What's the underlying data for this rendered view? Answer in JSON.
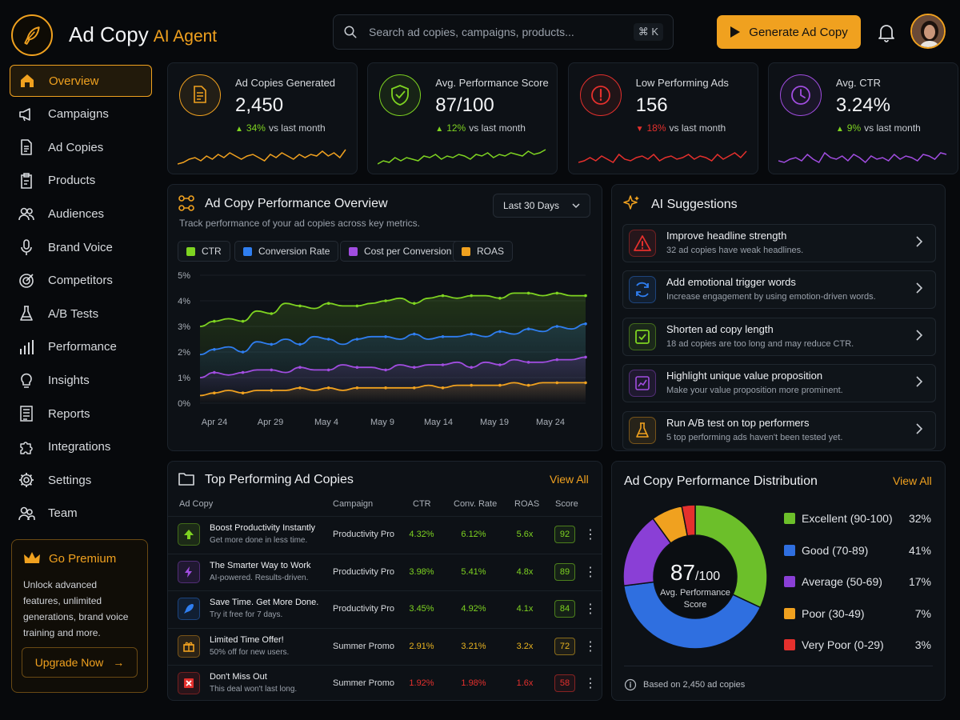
{
  "header": {
    "brand_main": "Ad Copy",
    "brand_accent": "AI Agent",
    "search_placeholder": "Search ad copies, campaigns, products...",
    "search_shortcut": "⌘ K",
    "generate_label": "Generate Ad Copy",
    "accent_color": "#f0a11f"
  },
  "sidebar": {
    "items": [
      {
        "label": "Overview",
        "icon": "home-icon",
        "active": true
      },
      {
        "label": "Campaigns",
        "icon": "megaphone-icon"
      },
      {
        "label": "Ad Copies",
        "icon": "document-icon"
      },
      {
        "label": "Products",
        "icon": "clipboard-icon"
      },
      {
        "label": "Audiences",
        "icon": "users-icon"
      },
      {
        "label": "Brand Voice",
        "icon": "microphone-icon"
      },
      {
        "label": "Competitors",
        "icon": "target-icon"
      },
      {
        "label": "A/B Tests",
        "icon": "flask-icon"
      },
      {
        "label": "Performance",
        "icon": "bar-chart-icon"
      },
      {
        "label": "Insights",
        "icon": "lightbulb-icon"
      },
      {
        "label": "Reports",
        "icon": "report-icon"
      },
      {
        "label": "Integrations",
        "icon": "puzzle-icon"
      },
      {
        "label": "Settings",
        "icon": "gear-icon"
      },
      {
        "label": "Team",
        "icon": "team-icon"
      }
    ],
    "premium": {
      "title": "Go Premium",
      "description": "Unlock advanced features, unlimited generations, brand voice training and more.",
      "button": "Upgrade Now"
    }
  },
  "stats": [
    {
      "label": "Ad Copies Generated",
      "value": "2,450",
      "delta": "34%",
      "delta_suffix": "vs last month",
      "trend": "up",
      "color": "#f0a11f",
      "icon": "document-icon"
    },
    {
      "label": "Avg. Performance Score",
      "value": "87/100",
      "delta": "12%",
      "delta_suffix": "vs last month",
      "trend": "up",
      "color": "#7ed321",
      "icon": "shield-check-icon"
    },
    {
      "label": "Low Performing Ads",
      "value": "156",
      "delta": "18%",
      "delta_suffix": "vs last month",
      "trend": "down",
      "color": "#e5302d",
      "icon": "alert-circle-icon"
    },
    {
      "label": "Avg. CTR",
      "value": "3.24%",
      "delta": "9%",
      "delta_suffix": "vs last month",
      "trend": "up",
      "color": "#a14de0",
      "icon": "clock-icon"
    }
  ],
  "performance": {
    "title": "Ad Copy Performance Overview",
    "subtitle": "Track performance of your ad copies across key metrics.",
    "range": "Last 30 Days",
    "legend": [
      {
        "name": "CTR",
        "color": "#7ed321"
      },
      {
        "name": "Conversion Rate",
        "color": "#2f7ef0"
      },
      {
        "name": "Cost per Conversion",
        "color": "#a14de0"
      },
      {
        "name": "ROAS",
        "color": "#f0a11f"
      }
    ]
  },
  "chart_data": {
    "type": "line",
    "ylim": [
      0,
      5
    ],
    "y_ticks": [
      "0%",
      "1%",
      "2%",
      "3%",
      "4%",
      "5%"
    ],
    "x_ticks": [
      "Apr 24",
      "Apr 29",
      "May 4",
      "May 9",
      "May 14",
      "May 19",
      "May 24"
    ],
    "series": [
      {
        "name": "CTR",
        "color": "#7ed321",
        "values": [
          3.0,
          3.2,
          3.3,
          3.2,
          3.6,
          3.5,
          3.9,
          3.8,
          3.7,
          3.9,
          3.8,
          3.8,
          3.9,
          4.0,
          4.1,
          3.9,
          4.1,
          4.2,
          4.1,
          4.2,
          4.2,
          4.1,
          4.3,
          4.3,
          4.2,
          4.3,
          4.2,
          4.2
        ]
      },
      {
        "name": "Conversion Rate",
        "color": "#2f7ef0",
        "values": [
          1.9,
          2.1,
          2.2,
          2.0,
          2.4,
          2.3,
          2.5,
          2.3,
          2.6,
          2.5,
          2.3,
          2.5,
          2.6,
          2.6,
          2.5,
          2.7,
          2.5,
          2.6,
          2.6,
          2.7,
          2.6,
          2.8,
          2.7,
          2.9,
          2.8,
          3.0,
          2.9,
          3.1
        ]
      },
      {
        "name": "Cost per Conversion",
        "color": "#a14de0",
        "values": [
          1.0,
          1.2,
          1.1,
          1.2,
          1.3,
          1.3,
          1.2,
          1.4,
          1.3,
          1.3,
          1.5,
          1.4,
          1.4,
          1.3,
          1.5,
          1.4,
          1.5,
          1.5,
          1.6,
          1.4,
          1.6,
          1.5,
          1.7,
          1.6,
          1.6,
          1.7,
          1.7,
          1.8
        ]
      },
      {
        "name": "ROAS",
        "color": "#f0a11f",
        "values": [
          0.3,
          0.4,
          0.5,
          0.4,
          0.5,
          0.5,
          0.5,
          0.6,
          0.5,
          0.6,
          0.5,
          0.6,
          0.6,
          0.6,
          0.6,
          0.6,
          0.7,
          0.6,
          0.7,
          0.7,
          0.7,
          0.7,
          0.8,
          0.7,
          0.8,
          0.8,
          0.8,
          0.8
        ]
      }
    ]
  },
  "suggestions": {
    "title": "AI Suggestions",
    "items": [
      {
        "title": "Improve headline strength",
        "subtitle": "32 ad copies have weak headlines.",
        "color": "#e5302d",
        "icon": "warning-icon"
      },
      {
        "title": "Add emotional trigger words",
        "subtitle": "Increase engagement by using emotion-driven words.",
        "color": "#2f7ef0",
        "icon": "refresh-icon"
      },
      {
        "title": "Shorten ad copy length",
        "subtitle": "18 ad copies are too long and may reduce CTR.",
        "color": "#7ed321",
        "icon": "checkbox-icon"
      },
      {
        "title": "Highlight unique value proposition",
        "subtitle": "Make your value proposition more prominent.",
        "color": "#a14de0",
        "icon": "chart-line-icon"
      },
      {
        "title": "Run A/B test on top performers",
        "subtitle": "5 top performing ads haven't been tested yet.",
        "color": "#f0a11f",
        "icon": "flask-icon"
      }
    ]
  },
  "top_ads": {
    "title": "Top Performing Ad Copies",
    "view_all": "View All",
    "columns": [
      "Ad Copy",
      "Campaign",
      "CTR",
      "Conv. Rate",
      "ROAS",
      "Score"
    ],
    "rows": [
      {
        "title": "Boost Productivity Instantly",
        "subtitle": "Get more done in less time.",
        "campaign": "Productivity Pro",
        "ctr": "4.32%",
        "conv": "6.12%",
        "roas": "5.6x",
        "score": "92",
        "tone": "green",
        "icon": "arrow-up-icon",
        "color": "#7ed321"
      },
      {
        "title": "The Smarter Way to Work",
        "subtitle": "AI-powered. Results-driven.",
        "campaign": "Productivity Pro",
        "ctr": "3.98%",
        "conv": "5.41%",
        "roas": "4.8x",
        "score": "89",
        "tone": "green",
        "icon": "bolt-icon",
        "color": "#a14de0"
      },
      {
        "title": "Save Time. Get More Done.",
        "subtitle": "Try it free for 7 days.",
        "campaign": "Productivity Pro",
        "ctr": "3.45%",
        "conv": "4.92%",
        "roas": "4.1x",
        "score": "84",
        "tone": "green",
        "icon": "rocket-icon",
        "color": "#2f7ef0"
      },
      {
        "title": "Limited Time Offer!",
        "subtitle": "50% off for new users.",
        "campaign": "Summer Promo",
        "ctr": "2.91%",
        "conv": "3.21%",
        "roas": "3.2x",
        "score": "72",
        "tone": "yellow",
        "icon": "gift-icon",
        "color": "#f0a11f"
      },
      {
        "title": "Don't Miss Out",
        "subtitle": "This deal won't last long.",
        "campaign": "Summer Promo",
        "ctr": "1.92%",
        "conv": "1.98%",
        "roas": "1.6x",
        "score": "58",
        "tone": "red",
        "icon": "x-icon",
        "color": "#e5302d"
      }
    ]
  },
  "distribution": {
    "title": "Ad Copy Performance Distribution",
    "view_all": "View All",
    "center_value": "87",
    "center_suffix": "/100",
    "center_label": "Avg. Performance Score",
    "footer": "Based on 2,450 ad copies",
    "segments": [
      {
        "label": "Excellent (90-100)",
        "pct": "32%",
        "value": 32,
        "color": "#6cbf2a"
      },
      {
        "label": "Good (70-89)",
        "pct": "41%",
        "value": 41,
        "color": "#2f6fe0"
      },
      {
        "label": "Average (50-69)",
        "pct": "17%",
        "value": 17,
        "color": "#8a3fd6"
      },
      {
        "label": "Poor (30-49)",
        "pct": "7%",
        "value": 7,
        "color": "#f0a11f"
      },
      {
        "label": "Very Poor (0-29)",
        "pct": "3%",
        "value": 3,
        "color": "#e5302d"
      }
    ]
  }
}
